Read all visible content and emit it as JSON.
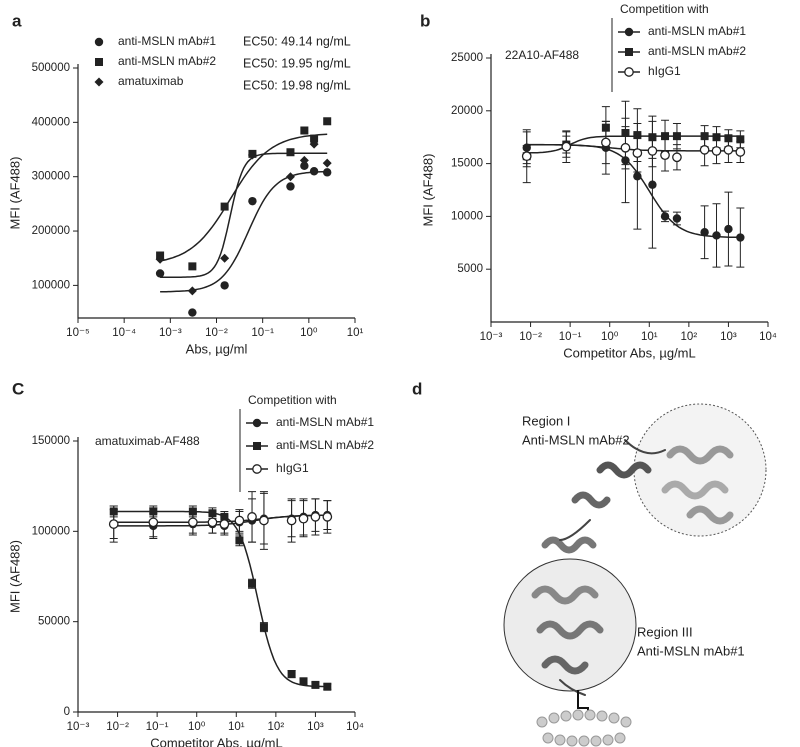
{
  "chart_data": [
    {
      "type": "scatter",
      "panel_label": "a",
      "xlabel": "Abs, µg/ml",
      "ylabel": "MFI (AF488)",
      "log_x": true,
      "xlim": [
        1e-05,
        10
      ],
      "xticks": [
        {
          "value": 1e-05,
          "label": "10⁻⁵"
        },
        {
          "value": 0.0001,
          "label": "10⁻⁴"
        },
        {
          "value": 0.001,
          "label": "10⁻³"
        },
        {
          "value": 0.01,
          "label": "10⁻²"
        },
        {
          "value": 0.1,
          "label": "10⁻¹"
        },
        {
          "value": 1,
          "label": "10⁰"
        },
        {
          "value": 10,
          "label": "10¹"
        }
      ],
      "ylim": [
        40000,
        500000
      ],
      "yticks": [
        100000,
        200000,
        300000,
        400000,
        500000
      ],
      "x": [
        0.0006,
        0.003,
        0.015,
        0.06,
        0.4,
        0.8,
        1.3,
        2.5
      ],
      "annotations": [
        "EC50: 49.14 ng/mL",
        "EC50: 19.95 ng/mL",
        "EC50: 19.98 ng/mL"
      ],
      "series": [
        {
          "name": "anti-MSLN mAb#1",
          "color": "#222",
          "marker": "circle",
          "values": [
            122000,
            50000,
            100000,
            255000,
            282000,
            320000,
            310000,
            308000
          ],
          "fit": {
            "start": 88000,
            "end": 310000,
            "ec50": 0.049,
            "hill": 1.5
          }
        },
        {
          "name": "anti-MSLN mAb#2",
          "color": "#222",
          "marker": "square",
          "values": [
            155000,
            135000,
            245000,
            342000,
            345000,
            385000,
            370000,
            402000
          ],
          "fit": {
            "start": 138000,
            "end": 380000,
            "ec50": 0.02,
            "hill": 1
          }
        },
        {
          "name": "amatuximab",
          "color": "#222",
          "marker": "diamond",
          "values": [
            148000,
            90000,
            150000,
            340000,
            300000,
            330000,
            360000,
            325000
          ],
          "fit": {
            "start": 115000,
            "end": 343000,
            "ec50": 0.02,
            "hill": 3
          }
        }
      ]
    },
    {
      "type": "scatter",
      "panel_label": "b",
      "xlabel": "Competitor Abs, µg/mL",
      "ylabel": "MFI (AF488)",
      "log_x": true,
      "annotation": "22A10-AF488",
      "legend_title": "Competition with",
      "xlim": [
        0.001,
        10000
      ],
      "xticks": [
        {
          "value": 0.001,
          "label": "10⁻³"
        },
        {
          "value": 0.01,
          "label": "10⁻²"
        },
        {
          "value": 0.1,
          "label": "10⁻¹"
        },
        {
          "value": 1,
          "label": "10⁰"
        },
        {
          "value": 10,
          "label": "10¹"
        },
        {
          "value": 100,
          "label": "10²"
        },
        {
          "value": 1000,
          "label": "10³"
        },
        {
          "value": 10000,
          "label": "10⁴"
        }
      ],
      "ylim": [
        0,
        25000
      ],
      "yticks": [
        5000,
        10000,
        15000,
        20000,
        25000
      ],
      "x": [
        0.008,
        0.08,
        0.8,
        2.5,
        5,
        12,
        25,
        50,
        250,
        500,
        1000,
        2000
      ],
      "series": [
        {
          "name": "anti-MSLN mAb#1",
          "color": "#222",
          "marker": "circle",
          "values": [
            16500,
            16800,
            16500,
            15300,
            13800,
            13000,
            10000,
            9800,
            8500,
            8200,
            8800,
            8000
          ],
          "errors": [
            1500,
            1200,
            2500,
            4000,
            5000,
            6000,
            500,
            600,
            2500,
            3000,
            3500,
            2800
          ],
          "fit": {
            "start": 16800,
            "end": 8000,
            "ec50": 10,
            "hill": 1.2
          }
        },
        {
          "name": "anti-MSLN mAb#2",
          "color": "#222",
          "marker": "square",
          "values": [
            15700,
            16800,
            18400,
            17900,
            17700,
            17500,
            17600,
            17600,
            17600,
            17500,
            17400,
            17300
          ],
          "errors": [
            1000,
            800,
            2000,
            3000,
            2500,
            2000,
            1500,
            1200,
            1000,
            1000,
            800,
            800
          ],
          "fit": {
            "start": 16000,
            "end": 17600,
            "ec50": 0.1,
            "hill": 2
          }
        },
        {
          "name": "hIgG1",
          "color": "#222",
          "marker": "open-circle",
          "values": [
            15700,
            16600,
            17000,
            16500,
            16000,
            16200,
            15800,
            15600,
            16300,
            16200,
            16300,
            16100
          ],
          "errors": [
            2500,
            1500,
            2000,
            2000,
            1800,
            1500,
            1500,
            1200,
            1500,
            1200,
            1200,
            1000
          ],
          "fit": {
            "start": 16800,
            "end": 16200,
            "ec50": 1,
            "hill": 1
          }
        }
      ]
    },
    {
      "type": "scatter",
      "panel_label": "C",
      "xlabel": "Competitor Abs, µg/mL",
      "ylabel": "MFI (AF488)",
      "log_x": true,
      "annotation": "amatuximab-AF488",
      "legend_title": "Competition with",
      "xlim": [
        0.001,
        10000
      ],
      "xticks": [
        {
          "value": 0.001,
          "label": "10⁻³"
        },
        {
          "value": 0.01,
          "label": "10⁻²"
        },
        {
          "value": 0.1,
          "label": "10⁻¹"
        },
        {
          "value": 1,
          "label": "10⁰"
        },
        {
          "value": 10,
          "label": "10¹"
        },
        {
          "value": 100,
          "label": "10²"
        },
        {
          "value": 1000,
          "label": "10³"
        },
        {
          "value": 10000,
          "label": "10⁴"
        }
      ],
      "ylim": [
        0,
        150000
      ],
      "yticks": [
        0,
        50000,
        100000,
        150000
      ],
      "x": [
        0.008,
        0.08,
        0.8,
        2.5,
        5,
        12,
        25,
        50,
        250,
        500,
        1000,
        2000
      ],
      "series": [
        {
          "name": "anti-MSLN mAb#1",
          "color": "#222",
          "marker": "circle",
          "values": [
            104000,
            103000,
            104000,
            104000,
            103000,
            105000,
            106000,
            107000,
            107000,
            108000,
            109000,
            109000
          ],
          "errors": [
            8000,
            7000,
            6000,
            5000,
            5000,
            6000,
            12000,
            14000,
            10000,
            10000,
            9000,
            8000
          ],
          "fit": {
            "start": 103000,
            "end": 109000,
            "ec50": 30,
            "hill": 1
          }
        },
        {
          "name": "anti-MSLN mAb#2",
          "color": "#222",
          "marker": "square",
          "values": [
            111000,
            111000,
            111000,
            110000,
            108000,
            95000,
            71000,
            47000,
            21000,
            17000,
            15000,
            14000
          ],
          "errors": [
            3000,
            3000,
            3000,
            3000,
            3000,
            3000,
            2500,
            2500,
            2000,
            1500,
            1500,
            1500
          ],
          "fit": {
            "start": 111000,
            "end": 14000,
            "ec50": 35,
            "hill": 1.8
          }
        },
        {
          "name": "hIgG1",
          "color": "#222",
          "marker": "open-circle",
          "values": [
            104000,
            105000,
            105000,
            105000,
            104000,
            106000,
            108000,
            106000,
            106000,
            107000,
            108000,
            108000
          ],
          "errors": [
            10000,
            8000,
            6000,
            6000,
            5000,
            6000,
            14000,
            16000,
            12000,
            10000,
            10000,
            9000
          ],
          "fit": {
            "start": 105000,
            "end": 109000,
            "ec50": 50,
            "hill": 1
          }
        }
      ]
    }
  ],
  "diagram": {
    "panel_label": "d",
    "region1_title": "Region I",
    "region1_ab": "Anti-MSLN mAb#2",
    "region3_title": "Region III",
    "region3_ab": "Anti-MSLN mAb#1"
  }
}
